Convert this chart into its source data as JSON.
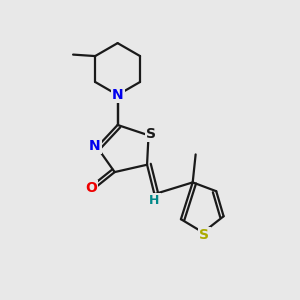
{
  "background_color": "#e8e8e8",
  "bond_color": "#1a1a1a",
  "N_color": "#0000ee",
  "O_color": "#ee0000",
  "S_thia_color": "#1a1a1a",
  "S_thio_color": "#aaaa00",
  "H_color": "#008888",
  "figsize": [
    3.0,
    3.0
  ],
  "dpi": 100,
  "xlim": [
    0,
    10
  ],
  "ylim": [
    0,
    10
  ]
}
